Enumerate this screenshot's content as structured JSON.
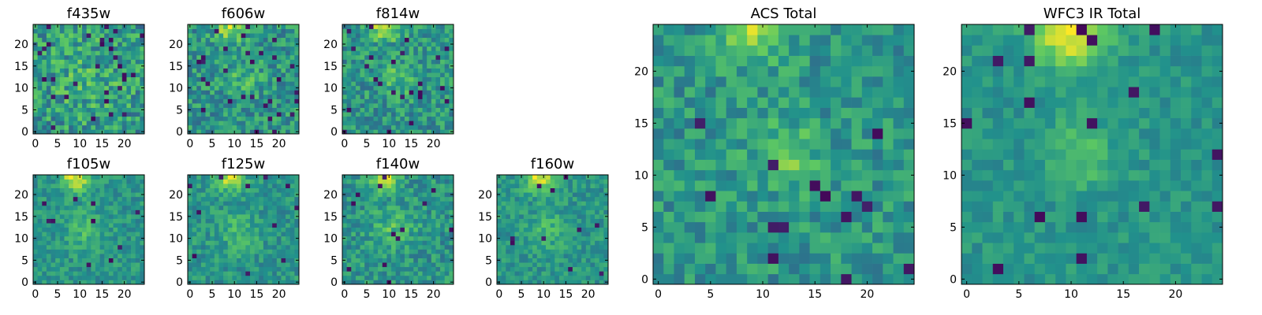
{
  "figure": {
    "colormap": "viridis",
    "colormap_stops": [
      "#440154",
      "#3b528b",
      "#21918c",
      "#5ec962",
      "#fde725"
    ]
  },
  "chart_data": [
    {
      "type": "heatmap",
      "title": "f435w",
      "grid_size": [
        25,
        25
      ],
      "xlim": [
        -0.5,
        24.5
      ],
      "ylim": [
        -0.5,
        24.5
      ],
      "xticks": [
        0,
        5,
        10,
        15,
        20
      ],
      "yticks": [
        0,
        5,
        10,
        15,
        20
      ],
      "noise": 0.22,
      "peaks": [
        {
          "x": 12,
          "y": 12,
          "sigma": 7,
          "amp": 0.1
        }
      ],
      "dark_spots": 30,
      "seed": 11
    },
    {
      "type": "heatmap",
      "title": "f606w",
      "grid_size": [
        25,
        25
      ],
      "xlim": [
        -0.5,
        24.5
      ],
      "ylim": [
        -0.5,
        24.5
      ],
      "xticks": [
        0,
        5,
        10,
        15,
        20
      ],
      "yticks": [
        0,
        5,
        10,
        15,
        20
      ],
      "noise": 0.18,
      "peaks": [
        {
          "x": 9,
          "y": 24,
          "sigma": 2.2,
          "amp": 0.38
        },
        {
          "x": 12,
          "y": 12,
          "sigma": 3,
          "amp": 0.12
        }
      ],
      "dark_spots": 30,
      "seed": 22
    },
    {
      "type": "heatmap",
      "title": "f814w",
      "grid_size": [
        25,
        25
      ],
      "xlim": [
        -0.5,
        24.5
      ],
      "ylim": [
        -0.5,
        24.5
      ],
      "xticks": [
        0,
        5,
        10,
        15,
        20
      ],
      "yticks": [
        0,
        5,
        10,
        15,
        20
      ],
      "noise": 0.18,
      "peaks": [
        {
          "x": 9,
          "y": 24,
          "sigma": 2.2,
          "amp": 0.42
        },
        {
          "x": 12,
          "y": 12,
          "sigma": 3,
          "amp": 0.15
        }
      ],
      "dark_spots": 24,
      "seed": 33
    },
    {
      "type": "heatmap",
      "title": "f105w",
      "grid_size": [
        25,
        25
      ],
      "xlim": [
        -0.5,
        24.5
      ],
      "ylim": [
        -0.5,
        24.5
      ],
      "xticks": [
        0,
        5,
        10,
        15,
        20
      ],
      "yticks": [
        0,
        5,
        10,
        15,
        20
      ],
      "noise": 0.12,
      "peaks": [
        {
          "x": 9,
          "y": 24,
          "sigma": 2.2,
          "amp": 0.45
        },
        {
          "x": 11,
          "y": 12,
          "sigma": 3,
          "amp": 0.15
        }
      ],
      "dark_spots": 10,
      "seed": 44
    },
    {
      "type": "heatmap",
      "title": "f125w",
      "grid_size": [
        25,
        25
      ],
      "xlim": [
        -0.5,
        24.5
      ],
      "ylim": [
        -0.5,
        24.5
      ],
      "xticks": [
        0,
        5,
        10,
        15,
        20
      ],
      "yticks": [
        0,
        5,
        10,
        15,
        20
      ],
      "noise": 0.13,
      "peaks": [
        {
          "x": 9,
          "y": 24,
          "sigma": 2.2,
          "amp": 0.4
        },
        {
          "x": 11,
          "y": 12,
          "sigma": 3,
          "amp": 0.15
        }
      ],
      "dark_spots": 12,
      "seed": 55
    },
    {
      "type": "heatmap",
      "title": "f140w",
      "grid_size": [
        25,
        25
      ],
      "xlim": [
        -0.5,
        24.5
      ],
      "ylim": [
        -0.5,
        24.5
      ],
      "xticks": [
        0,
        5,
        10,
        15,
        20
      ],
      "yticks": [
        0,
        5,
        10,
        15,
        20
      ],
      "noise": 0.15,
      "peaks": [
        {
          "x": 9,
          "y": 24,
          "sigma": 2.2,
          "amp": 0.42
        },
        {
          "x": 11,
          "y": 12,
          "sigma": 3,
          "amp": 0.16
        }
      ],
      "dark_spots": 14,
      "seed": 66
    },
    {
      "type": "heatmap",
      "title": "f160w",
      "grid_size": [
        25,
        25
      ],
      "xlim": [
        -0.5,
        24.5
      ],
      "ylim": [
        -0.5,
        24.5
      ],
      "xticks": [
        0,
        5,
        10,
        15,
        20
      ],
      "yticks": [
        0,
        5,
        10,
        15,
        20
      ],
      "noise": 0.12,
      "peaks": [
        {
          "x": 9,
          "y": 24,
          "sigma": 2.2,
          "amp": 0.45
        },
        {
          "x": 11,
          "y": 12,
          "sigma": 3,
          "amp": 0.14
        }
      ],
      "dark_spots": 10,
      "seed": 77
    },
    {
      "type": "heatmap",
      "title": "ACS Total",
      "grid_size": [
        25,
        25
      ],
      "xlim": [
        -0.5,
        24.5
      ],
      "ylim": [
        -0.5,
        24.5
      ],
      "xticks": [
        0,
        5,
        10,
        15,
        20
      ],
      "yticks": [
        0,
        5,
        10,
        15,
        20
      ],
      "noise": 0.15,
      "peaks": [
        {
          "x": 9,
          "y": 24,
          "sigma": 2.2,
          "amp": 0.38
        },
        {
          "x": 12,
          "y": 12,
          "sigma": 2.2,
          "amp": 0.22
        }
      ],
      "dark_spots": 14,
      "seed": 88
    },
    {
      "type": "heatmap",
      "title": "WFC3 IR Total",
      "grid_size": [
        25,
        25
      ],
      "xlim": [
        -0.5,
        24.5
      ],
      "ylim": [
        -0.5,
        24.5
      ],
      "xticks": [
        0,
        5,
        10,
        15,
        20
      ],
      "yticks": [
        0,
        5,
        10,
        15,
        20
      ],
      "noise": 0.09,
      "peaks": [
        {
          "x": 10,
          "y": 24,
          "sigma": 2.5,
          "amp": 0.48
        },
        {
          "x": 11,
          "y": 12,
          "sigma": 2.2,
          "amp": 0.2
        }
      ],
      "dark_spots": 18,
      "seed": 99
    }
  ]
}
